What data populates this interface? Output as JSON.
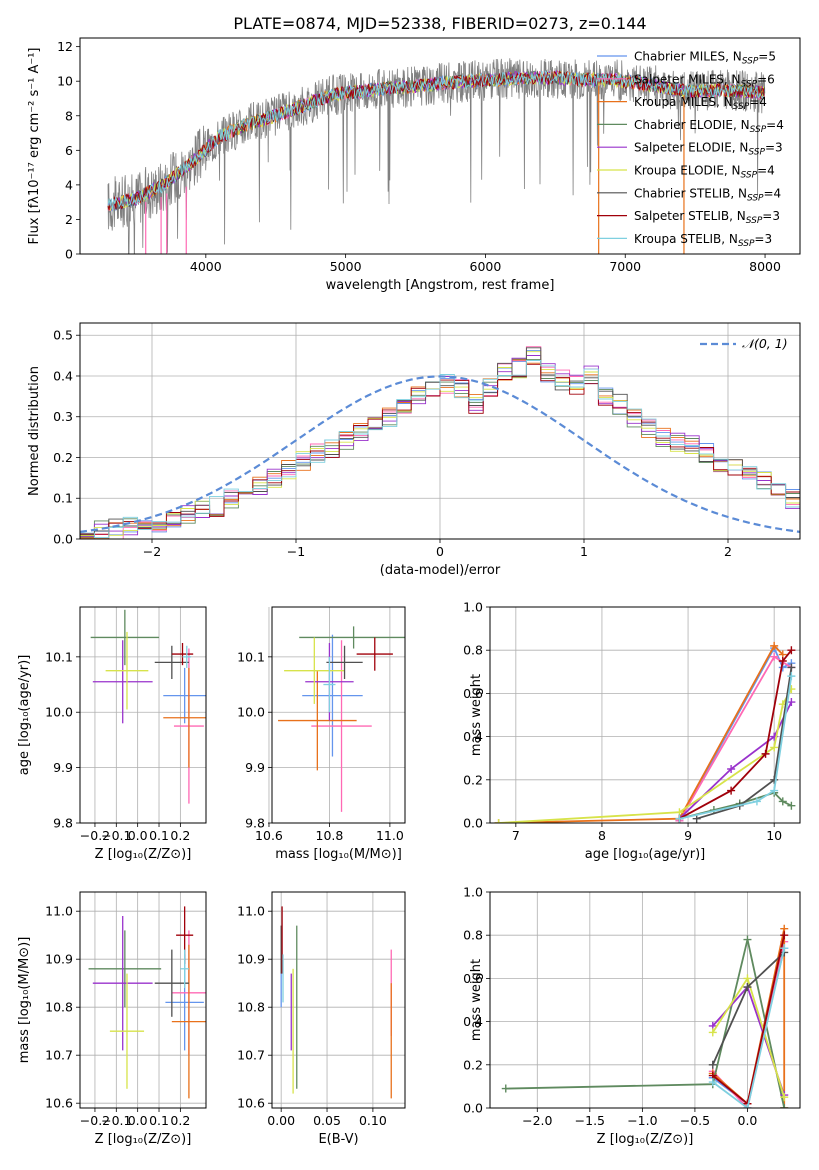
{
  "figure": {
    "title": "PLATE=0874, MJD=52338, FIBERID=0273, z=0.144"
  },
  "colors": {
    "grid": "#b0b0b0",
    "data_spectrum": "#808080",
    "series": [
      "#6495ed",
      "#ff69b4",
      "#e8711b",
      "#5f8a5f",
      "#9932cc",
      "#d7e34a",
      "#505050",
      "#a0000a",
      "#7fd0e0"
    ]
  },
  "chart_data": [
    {
      "id": "spectrum",
      "type": "line",
      "xlabel": "wavelength [Angstrom, rest frame]",
      "ylabel": "Flux [fλ10⁻¹⁷ erg cm⁻² s⁻¹ A⁻¹]",
      "xlim": [
        3100,
        8250
      ],
      "ylim": [
        0,
        12.5
      ],
      "xticks": [
        4000,
        5000,
        6000,
        7000,
        8000
      ],
      "yticks": [
        0,
        2,
        4,
        6,
        8,
        10,
        12
      ],
      "grid": false,
      "legend": "upper right",
      "continuum": {
        "x": [
          3300,
          3500,
          3700,
          3900,
          4100,
          4300,
          4500,
          4700,
          4900,
          5100,
          5300,
          5500,
          5700,
          5900,
          6100,
          6300,
          6500,
          6700,
          6900,
          7100,
          7300,
          7500,
          7700,
          7900,
          8000
        ],
        "y": [
          2.8,
          3.2,
          4.0,
          5.3,
          6.8,
          7.5,
          8.0,
          8.6,
          9.2,
          9.4,
          9.6,
          9.7,
          9.9,
          10.0,
          10.1,
          10.2,
          10.2,
          10.1,
          10.1,
          9.9,
          9.6,
          9.4,
          9.5,
          9.4,
          9.3
        ]
      },
      "series": [
        {
          "name": "Chabrier MILES, N",
          "sub": "SSP",
          "tail": "=5"
        },
        {
          "name": "Salpeter MILES, N",
          "sub": "SSP",
          "tail": "=6"
        },
        {
          "name": "Kroupa MILES, N",
          "sub": "SSP",
          "tail": "=4"
        },
        {
          "name": "Chabrier ELODIE, N",
          "sub": "SSP",
          "tail": "=4"
        },
        {
          "name": "Salpeter ELODIE, N",
          "sub": "SSP",
          "tail": "=3"
        },
        {
          "name": "Kroupa ELODIE, N",
          "sub": "SSP",
          "tail": "=4"
        },
        {
          "name": "Chabrier STELIB, N",
          "sub": "SSP",
          "tail": "=4"
        },
        {
          "name": "Salpeter STELIB, N",
          "sub": "SSP",
          "tail": "=3"
        },
        {
          "name": "Kroupa STELIB, N",
          "sub": "SSP",
          "tail": "=3"
        }
      ]
    },
    {
      "id": "residuals",
      "type": "histogram",
      "xlabel": "(data-model)/error",
      "ylabel": "Normed distribution",
      "xlim": [
        -2.5,
        2.5
      ],
      "ylim": [
        0,
        0.53
      ],
      "xticks": [
        -2,
        -1,
        0,
        1,
        2
      ],
      "yticks": [
        0.0,
        0.1,
        0.2,
        0.3,
        0.4,
        0.5
      ],
      "grid": true,
      "legend": "upper right",
      "legend_label": "𝒩(0, 1)",
      "bin_width": 0.1,
      "bin_start": -2.5,
      "values": [
        0.015,
        0.02,
        0.025,
        0.03,
        0.035,
        0.04,
        0.05,
        0.06,
        0.07,
        0.08,
        0.1,
        0.12,
        0.13,
        0.15,
        0.17,
        0.19,
        0.21,
        0.22,
        0.24,
        0.26,
        0.28,
        0.3,
        0.32,
        0.35,
        0.37,
        0.38,
        0.37,
        0.33,
        0.37,
        0.41,
        0.42,
        0.45,
        0.41,
        0.39,
        0.38,
        0.4,
        0.35,
        0.33,
        0.3,
        0.27,
        0.25,
        0.24,
        0.23,
        0.21,
        0.19,
        0.18,
        0.16,
        0.14,
        0.12,
        0.1,
        0.08,
        0.07,
        0.06,
        0.05,
        0.045,
        0.04,
        0.035,
        0.03,
        0.025,
        0.02
      ]
    },
    {
      "id": "age_vs_Z",
      "type": "errorbar",
      "xlabel": "Z [log₁₀(Z/Z⊙)]",
      "ylabel": "age  [log₁₀(age/yr)]",
      "xlim": [
        -0.27,
        0.32
      ],
      "ylim": [
        9.8,
        10.19
      ],
      "xticks": [
        -0.2,
        -0.1,
        0.0,
        0.1,
        0.2
      ],
      "yticks": [
        9.8,
        9.9,
        10.0,
        10.1
      ],
      "grid": true,
      "points": [
        {
          "x": 0.22,
          "y": 10.03,
          "xerr": 0.1,
          "yerr": 0.05,
          "c": 0
        },
        {
          "x": 0.24,
          "y": 9.975,
          "xerr": 0.07,
          "yerr": 0.14,
          "c": 1
        },
        {
          "x": 0.24,
          "y": 9.99,
          "xerr": 0.12,
          "yerr": 0.09,
          "c": 2
        },
        {
          "x": -0.06,
          "y": 10.135,
          "xerr": 0.16,
          "yerr": 0.05,
          "c": 3
        },
        {
          "x": -0.07,
          "y": 10.055,
          "xerr": 0.14,
          "yerr": 0.075,
          "c": 4
        },
        {
          "x": -0.05,
          "y": 10.075,
          "xerr": 0.1,
          "yerr": 0.07,
          "c": 5
        },
        {
          "x": 0.16,
          "y": 10.09,
          "xerr": 0.08,
          "yerr": 0.03,
          "c": 6
        },
        {
          "x": 0.21,
          "y": 10.105,
          "xerr": 0.05,
          "yerr": 0.02,
          "c": 7
        },
        {
          "x": 0.23,
          "y": 10.1,
          "xerr": 0.02,
          "yerr": 0.02,
          "c": 8
        }
      ]
    },
    {
      "id": "age_vs_mass",
      "type": "errorbar",
      "xlabel": "mass [log₁₀(M/M⊙)]",
      "ylabel": "",
      "xlim": [
        10.61,
        11.05
      ],
      "ylim": [
        9.8,
        10.19
      ],
      "xticks": [
        10.6,
        10.8,
        11.0
      ],
      "yticks": [
        9.8,
        9.9,
        10.0,
        10.1
      ],
      "grid": true,
      "points": [
        {
          "x": 10.81,
          "y": 10.03,
          "xerr": 0.1,
          "yerr": 0.11,
          "c": 0
        },
        {
          "x": 10.84,
          "y": 9.975,
          "xerr": 0.1,
          "yerr": 0.155,
          "c": 1
        },
        {
          "x": 10.76,
          "y": 9.985,
          "xerr": 0.13,
          "yerr": 0.09,
          "c": 2
        },
        {
          "x": 10.88,
          "y": 10.135,
          "xerr": 0.18,
          "yerr": 0.02,
          "c": 3
        },
        {
          "x": 10.8,
          "y": 10.055,
          "xerr": 0.08,
          "yerr": 0.07,
          "c": 4
        },
        {
          "x": 10.75,
          "y": 10.075,
          "xerr": 0.1,
          "yerr": 0.06,
          "c": 5
        },
        {
          "x": 10.85,
          "y": 10.09,
          "xerr": 0.06,
          "yerr": 0.03,
          "c": 6
        },
        {
          "x": 10.95,
          "y": 10.105,
          "xerr": 0.06,
          "yerr": 0.03,
          "c": 7
        },
        {
          "x": 10.8,
          "y": 10.05,
          "xerr": 0.02,
          "yerr": 0.05,
          "c": 8
        }
      ]
    },
    {
      "id": "weight_vs_age",
      "type": "line",
      "xlabel": "age  [log₁₀(age/yr)]",
      "ylabel": "mass weight",
      "xlim": [
        6.7,
        10.3
      ],
      "ylim": [
        0,
        1.0
      ],
      "xticks": [
        7,
        8,
        9,
        10
      ],
      "yticks": [
        0.0,
        0.2,
        0.4,
        0.6,
        0.8,
        1.0
      ],
      "grid": true,
      "series": [
        {
          "x": [
            8.9,
            10.0,
            10.1,
            10.2
          ],
          "y": [
            0.01,
            0.81,
            0.72,
            0.74
          ],
          "c": 0
        },
        {
          "x": [
            8.9,
            10.0,
            10.2
          ],
          "y": [
            0.01,
            0.77,
            0.72
          ],
          "c": 1
        },
        {
          "x": [
            6.8,
            8.9,
            10.0,
            10.1
          ],
          "y": [
            0.0,
            0.02,
            0.82,
            0.78
          ],
          "c": 2
        },
        {
          "x": [
            8.9,
            9.3,
            9.6,
            10.0,
            10.1,
            10.2
          ],
          "y": [
            0.02,
            0.06,
            0.09,
            0.14,
            0.1,
            0.08
          ],
          "c": 3
        },
        {
          "x": [
            8.9,
            9.5,
            10.0,
            10.2
          ],
          "y": [
            0.02,
            0.25,
            0.4,
            0.56
          ],
          "c": 4
        },
        {
          "x": [
            6.8,
            8.9,
            10.0,
            10.1,
            10.2
          ],
          "y": [
            0.0,
            0.05,
            0.35,
            0.55,
            0.62
          ],
          "c": 5
        },
        {
          "x": [
            9.1,
            9.6,
            10.0,
            10.2
          ],
          "y": [
            0.02,
            0.08,
            0.2,
            0.72
          ],
          "c": 6
        },
        {
          "x": [
            8.9,
            9.5,
            9.9,
            10.1,
            10.2
          ],
          "y": [
            0.02,
            0.15,
            0.32,
            0.75,
            0.8
          ],
          "c": 7
        },
        {
          "x": [
            8.9,
            9.8,
            10.0,
            10.2
          ],
          "y": [
            0.02,
            0.1,
            0.15,
            0.68
          ],
          "c": 8
        }
      ]
    },
    {
      "id": "mass_vs_Z",
      "type": "errorbar",
      "xlabel": "Z [log₁₀(Z/Z⊙)]",
      "ylabel": "mass [log₁₀(M/M⊙)]",
      "xlim": [
        -0.27,
        0.32
      ],
      "ylim": [
        10.59,
        11.04
      ],
      "xticks": [
        -0.2,
        -0.1,
        0.0,
        0.1,
        0.2
      ],
      "yticks": [
        10.6,
        10.7,
        10.8,
        10.9,
        11.0
      ],
      "grid": true,
      "points": [
        {
          "x": 0.22,
          "y": 10.81,
          "xerr": 0.09,
          "yerr": 0.1,
          "c": 0
        },
        {
          "x": 0.24,
          "y": 10.83,
          "xerr": 0.08,
          "yerr": 0.13,
          "c": 1
        },
        {
          "x": 0.24,
          "y": 10.77,
          "xerr": 0.08,
          "yerr": 0.16,
          "c": 2
        },
        {
          "x": -0.06,
          "y": 10.88,
          "xerr": 0.17,
          "yerr": 0.08,
          "c": 3
        },
        {
          "x": -0.07,
          "y": 10.85,
          "xerr": 0.14,
          "yerr": 0.14,
          "c": 4
        },
        {
          "x": -0.05,
          "y": 10.75,
          "xerr": 0.08,
          "yerr": 0.12,
          "c": 5
        },
        {
          "x": 0.16,
          "y": 10.85,
          "xerr": 0.08,
          "yerr": 0.07,
          "c": 6
        },
        {
          "x": 0.22,
          "y": 10.95,
          "xerr": 0.04,
          "yerr": 0.06,
          "c": 7
        },
        {
          "x": 0.22,
          "y": 10.88,
          "xerr": 0.02,
          "yerr": 0.04,
          "c": 8
        }
      ]
    },
    {
      "id": "mass_vs_ebv",
      "type": "errorbar",
      "xlabel": "E(B-V)",
      "ylabel": "",
      "xlim": [
        -0.01,
        0.135
      ],
      "ylim": [
        10.59,
        11.04
      ],
      "xticks": [
        0.0,
        0.05,
        0.1
      ],
      "yticks": [
        10.6,
        10.7,
        10.8,
        10.9,
        11.0
      ],
      "grid": true,
      "points": [
        {
          "x": 0.0,
          "y": 10.86,
          "xerr": 0,
          "yerr": 0.06,
          "c": 0
        },
        {
          "x": 0.12,
          "y": 10.83,
          "xerr": 0,
          "yerr": 0.09,
          "c": 1
        },
        {
          "x": 0.12,
          "y": 10.73,
          "xerr": 0,
          "yerr": 0.12,
          "c": 2
        },
        {
          "x": 0.017,
          "y": 10.8,
          "xerr": 0,
          "yerr": 0.17,
          "c": 3
        },
        {
          "x": 0.011,
          "y": 10.79,
          "xerr": 0,
          "yerr": 0.08,
          "c": 4
        },
        {
          "x": 0.013,
          "y": 10.75,
          "xerr": 0,
          "yerr": 0.13,
          "c": 5
        },
        {
          "x": 0.0,
          "y": 10.92,
          "xerr": 0,
          "yerr": 0.05,
          "c": 6
        },
        {
          "x": 0.001,
          "y": 10.94,
          "xerr": 0,
          "yerr": 0.07,
          "c": 7
        },
        {
          "x": 0.002,
          "y": 10.86,
          "xerr": 0,
          "yerr": 0.05,
          "c": 8
        }
      ]
    },
    {
      "id": "weight_vs_Z",
      "type": "line",
      "xlabel": "Z [log₁₀(Z/Z⊙)]",
      "ylabel": "mass weight",
      "xlim": [
        -2.45,
        0.5
      ],
      "ylim": [
        0,
        1.0
      ],
      "xticks": [
        -2.0,
        -1.5,
        -1.0,
        -0.5,
        0.0
      ],
      "yticks": [
        0.0,
        0.2,
        0.4,
        0.6,
        0.8,
        1.0
      ],
      "grid": true,
      "series": [
        {
          "x": [
            -0.33,
            0.0,
            0.35
          ],
          "y": [
            0.14,
            0.02,
            0.74
          ],
          "c": 0
        },
        {
          "x": [
            -0.33,
            0.0,
            0.35
          ],
          "y": [
            0.17,
            0.0,
            0.77
          ],
          "c": 1
        },
        {
          "x": [
            -0.33,
            0.0,
            0.35,
            0.35
          ],
          "y": [
            0.16,
            0.02,
            0.83,
            0.0
          ],
          "c": 2
        },
        {
          "x": [
            -2.3,
            -0.33,
            0.0,
            0.35
          ],
          "y": [
            0.09,
            0.11,
            0.78,
            0.0
          ],
          "c": 3
        },
        {
          "x": [
            -0.33,
            0.0,
            0.35
          ],
          "y": [
            0.38,
            0.56,
            0.06
          ],
          "c": 4
        },
        {
          "x": [
            -0.33,
            0.0,
            0.35
          ],
          "y": [
            0.35,
            0.6,
            0.05
          ],
          "c": 5
        },
        {
          "x": [
            -0.33,
            0.0,
            0.35
          ],
          "y": [
            0.2,
            0.56,
            0.72
          ],
          "c": 6
        },
        {
          "x": [
            -0.33,
            0.0,
            0.35
          ],
          "y": [
            0.15,
            0.02,
            0.8
          ],
          "c": 7
        },
        {
          "x": [
            -0.33,
            0.0,
            0.35
          ],
          "y": [
            0.12,
            0.0,
            0.74
          ],
          "c": 8
        }
      ]
    }
  ]
}
